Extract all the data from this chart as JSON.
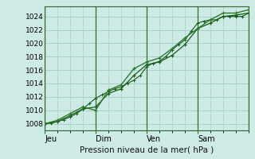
{
  "bg_color": "#ceeae4",
  "grid_color": "#a8cec8",
  "line_color_dark": "#1a5c1a",
  "line_color_med": "#2d7a2d",
  "title": "Pression niveau de la mer( hPa )",
  "xlim": [
    0,
    96
  ],
  "ylim": [
    1007.0,
    1025.5
  ],
  "yticks": [
    1008,
    1010,
    1012,
    1014,
    1016,
    1018,
    1020,
    1022,
    1024
  ],
  "day_ticks": [
    0,
    24,
    48,
    72
  ],
  "day_labels": [
    "Jeu",
    "Dim",
    "Ven",
    "Sam"
  ],
  "series1_x": [
    0,
    3,
    6,
    9,
    12,
    15,
    18,
    21,
    24,
    27,
    30,
    33,
    36,
    39,
    42,
    45,
    48,
    51,
    54,
    57,
    60,
    63,
    66,
    69,
    72,
    75,
    78,
    81,
    84,
    87,
    90,
    93,
    96
  ],
  "series1_y": [
    1008.0,
    1008.1,
    1008.3,
    1008.6,
    1009.0,
    1009.5,
    1010.2,
    1011.0,
    1011.8,
    1012.3,
    1012.8,
    1013.2,
    1013.5,
    1014.0,
    1014.5,
    1015.2,
    1016.5,
    1017.0,
    1017.3,
    1018.0,
    1019.0,
    1019.8,
    1020.5,
    1021.8,
    1023.0,
    1023.3,
    1023.5,
    1023.5,
    1024.0,
    1024.0,
    1024.0,
    1024.0,
    1024.5
  ],
  "series2_x": [
    0,
    6,
    12,
    18,
    24,
    30,
    36,
    42,
    48,
    54,
    60,
    66,
    72,
    78,
    84,
    90,
    96
  ],
  "series2_y": [
    1008.0,
    1008.3,
    1009.2,
    1010.2,
    1010.5,
    1012.5,
    1013.2,
    1015.2,
    1016.8,
    1017.2,
    1018.2,
    1019.8,
    1022.2,
    1023.0,
    1024.0,
    1024.2,
    1024.5
  ],
  "series3_x": [
    0,
    6,
    12,
    18,
    24,
    30,
    36,
    42,
    48,
    54,
    60,
    66,
    72,
    78,
    84,
    90,
    96
  ],
  "series3_y": [
    1008.0,
    1008.5,
    1009.5,
    1010.5,
    1010.0,
    1013.0,
    1013.8,
    1016.2,
    1017.2,
    1017.8,
    1019.2,
    1020.8,
    1022.2,
    1023.5,
    1024.5,
    1024.5,
    1025.0
  ]
}
